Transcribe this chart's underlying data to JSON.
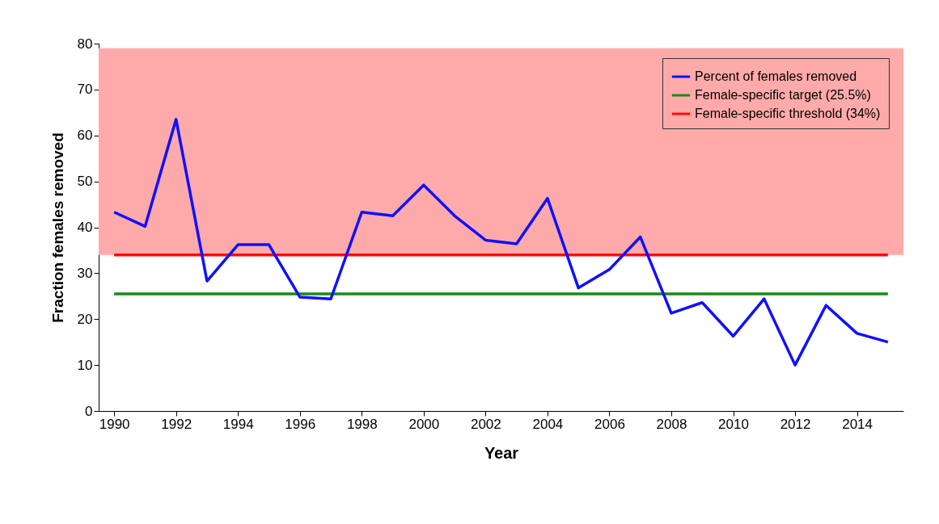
{
  "chart_data": {
    "type": "line",
    "xlabel": "Year",
    "ylabel": "Fraction females removed",
    "x": [
      1990,
      1991,
      1992,
      1993,
      1994,
      1995,
      1996,
      1997,
      1998,
      1999,
      2000,
      2001,
      2002,
      2003,
      2004,
      2005,
      2006,
      2007,
      2008,
      2009,
      2010,
      2011,
      2012,
      2013,
      2014,
      2015
    ],
    "series": [
      {
        "name": "Percent of females removed",
        "color": "#1010ff",
        "values": [
          43.3,
          40.2,
          63.5,
          28.3,
          36.2,
          36.2,
          24.8,
          24.4,
          43.3,
          42.5,
          49.2,
          42.5,
          37.2,
          36.4,
          46.3,
          26.8,
          30.8,
          37.9,
          21.3,
          23.6,
          16.3,
          24.4,
          10.0,
          23.0,
          16.9,
          15.0
        ]
      }
    ],
    "xlim": [
      1989.5,
      2015.5
    ],
    "xticks": [
      1990,
      1992,
      1994,
      1996,
      1998,
      2000,
      2002,
      2004,
      2006,
      2008,
      2010,
      2012,
      2014
    ],
    "ylim": [
      0,
      80
    ],
    "yticks": [
      0,
      10,
      20,
      30,
      40,
      50,
      60,
      70,
      80
    ],
    "ref_lines": [
      {
        "axis": "y",
        "value": 25.5,
        "label": "Female-specific target (25.5%)",
        "color": "#1a8a1a"
      },
      {
        "axis": "y",
        "value": 34,
        "label": "Female-specific threshold (34%)",
        "color": "#ff0a0a"
      }
    ],
    "bands": [
      {
        "axis": "y",
        "from": 34,
        "to": 79,
        "color": "#ffaaaa"
      }
    ],
    "grid": false,
    "legend": "top right",
    "marker": "none",
    "line_style": "solid"
  }
}
